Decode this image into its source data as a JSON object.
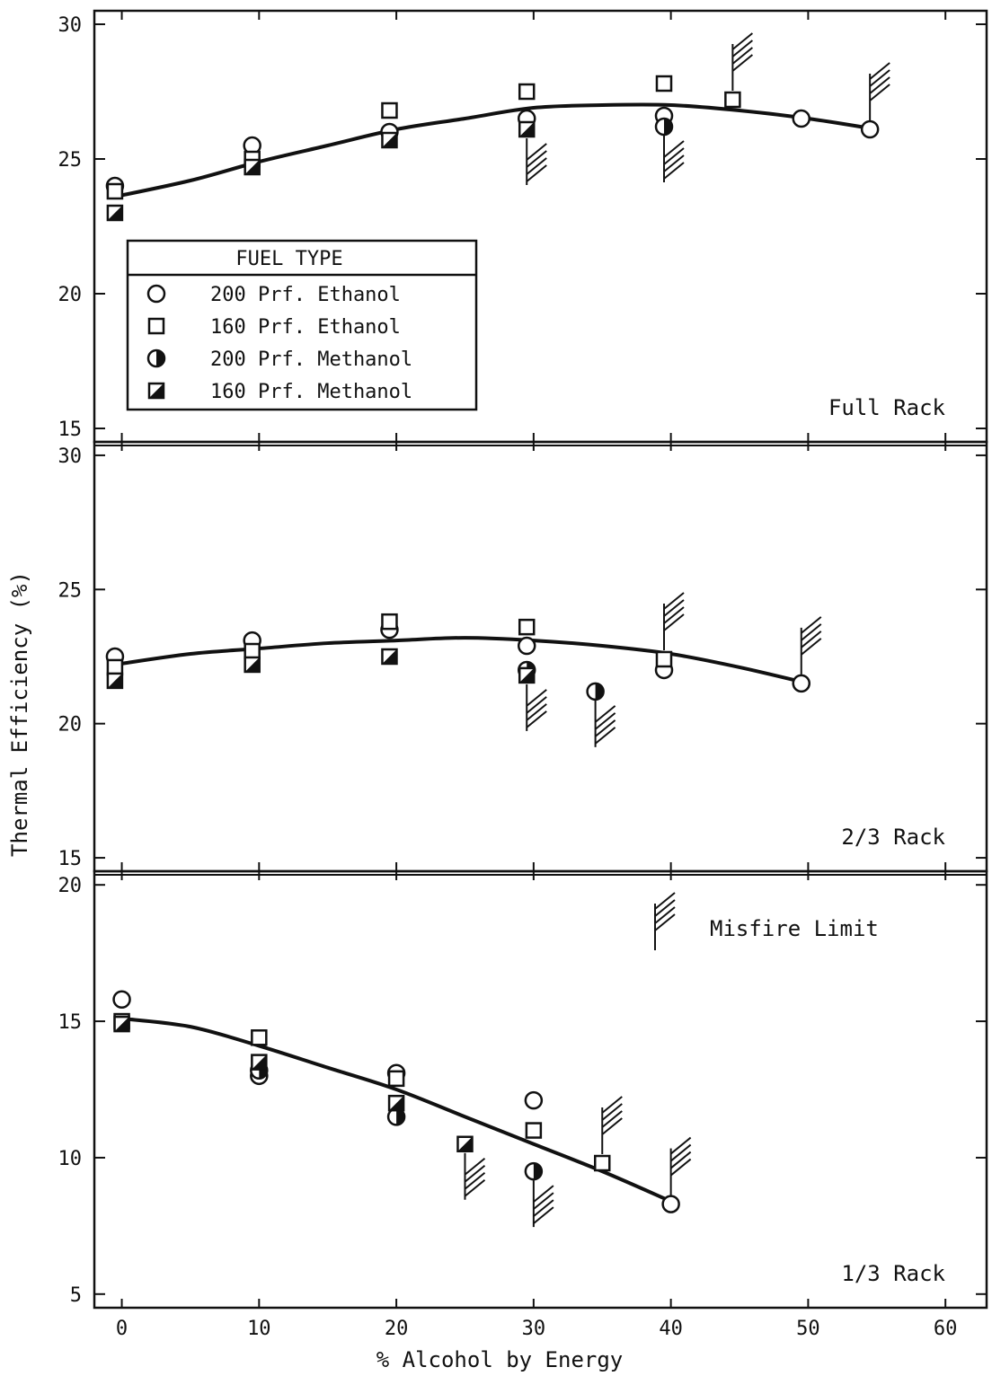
{
  "chart_data": {
    "type": "scatter",
    "xlabel": "% Alcohol by Energy",
    "ylabel": "Thermal Efficiency (%)",
    "x_ticks": [
      0,
      10,
      20,
      30,
      40,
      50,
      60
    ],
    "xlim": [
      -2,
      63
    ],
    "misfire_limit_label": "Misfire Limit",
    "legend": {
      "title": "FUEL TYPE",
      "entries": [
        {
          "marker": "open-circle",
          "label": "200 Prf. Ethanol"
        },
        {
          "marker": "open-square",
          "label": "160 Prf. Ethanol"
        },
        {
          "marker": "half-filled-circle",
          "label": "200 Prf. Methanol"
        },
        {
          "marker": "half-filled-square",
          "label": "160 Prf. Methanol"
        }
      ]
    },
    "panels": [
      {
        "label": "Full Rack",
        "ylim": [
          14.5,
          30.5
        ],
        "y_ticks": [
          15,
          20,
          25,
          30
        ],
        "fit_curve": [
          [
            -0.5,
            23.6
          ],
          [
            5,
            24.2
          ],
          [
            10,
            24.9
          ],
          [
            15,
            25.5
          ],
          [
            20,
            26.1
          ],
          [
            25,
            26.5
          ],
          [
            30,
            26.9
          ],
          [
            35,
            27.0
          ],
          [
            40,
            27.0
          ],
          [
            45,
            26.8
          ],
          [
            50,
            26.5
          ],
          [
            55,
            26.1
          ]
        ],
        "series": [
          {
            "name": "200 Prf. Ethanol",
            "marker": "open-circle",
            "points": [
              [
                -0.5,
                24.0
              ],
              [
                9.5,
                25.5
              ],
              [
                19.5,
                26.0
              ],
              [
                29.5,
                26.5
              ],
              [
                39.5,
                26.6
              ],
              [
                49.5,
                26.5
              ],
              [
                54.5,
                26.1
              ]
            ]
          },
          {
            "name": "160 Prf. Ethanol",
            "marker": "open-square",
            "points": [
              [
                -0.5,
                23.8
              ],
              [
                9.5,
                25.0
              ],
              [
                19.5,
                26.8
              ],
              [
                29.5,
                27.5
              ],
              [
                39.5,
                27.8
              ],
              [
                44.5,
                27.2
              ]
            ]
          },
          {
            "name": "200 Prf. Methanol",
            "marker": "half-filled-circle",
            "points": [
              [
                39.5,
                26.2
              ]
            ]
          },
          {
            "name": "160 Prf. Methanol",
            "marker": "half-filled-square",
            "points": [
              [
                -0.5,
                23.0
              ],
              [
                9.5,
                24.7
              ],
              [
                19.5,
                25.7
              ],
              [
                29.5,
                26.1
              ]
            ]
          }
        ],
        "misfire_limits": [
          {
            "x": 29.5,
            "y": 26.1,
            "dir": "down"
          },
          {
            "x": 39.5,
            "y": 26.2,
            "dir": "down"
          },
          {
            "x": 44.5,
            "y": 27.2,
            "dir": "up"
          },
          {
            "x": 54.5,
            "y": 26.1,
            "dir": "up"
          }
        ]
      },
      {
        "label": "2/3 Rack",
        "ylim": [
          14.5,
          30.5
        ],
        "y_ticks": [
          15,
          20,
          25,
          30
        ],
        "fit_curve": [
          [
            -0.5,
            22.2
          ],
          [
            5,
            22.6
          ],
          [
            10,
            22.8
          ],
          [
            15,
            23.0
          ],
          [
            20,
            23.1
          ],
          [
            25,
            23.2
          ],
          [
            30,
            23.1
          ],
          [
            35,
            22.9
          ],
          [
            40,
            22.6
          ],
          [
            45,
            22.1
          ],
          [
            50,
            21.5
          ]
        ],
        "series": [
          {
            "name": "200 Prf. Ethanol",
            "marker": "open-circle",
            "points": [
              [
                -0.5,
                22.5
              ],
              [
                9.5,
                23.1
              ],
              [
                19.5,
                23.5
              ],
              [
                29.5,
                22.9
              ],
              [
                39.5,
                22.0
              ],
              [
                49.5,
                21.5
              ]
            ]
          },
          {
            "name": "160 Prf. Ethanol",
            "marker": "open-square",
            "points": [
              [
                -0.5,
                22.1
              ],
              [
                9.5,
                22.7
              ],
              [
                19.5,
                23.8
              ],
              [
                29.5,
                23.6
              ],
              [
                39.5,
                22.4
              ]
            ]
          },
          {
            "name": "200 Prf. Methanol",
            "marker": "half-filled-circle",
            "points": [
              [
                29.5,
                22.0
              ],
              [
                34.5,
                21.2
              ]
            ]
          },
          {
            "name": "160 Prf. Methanol",
            "marker": "half-filled-square",
            "points": [
              [
                -0.5,
                21.6
              ],
              [
                9.5,
                22.2
              ],
              [
                19.5,
                22.5
              ],
              [
                29.5,
                21.8
              ]
            ]
          }
        ],
        "misfire_limits": [
          {
            "x": 29.5,
            "y": 21.8,
            "dir": "down"
          },
          {
            "x": 34.5,
            "y": 21.2,
            "dir": "down"
          },
          {
            "x": 39.5,
            "y": 22.4,
            "dir": "up"
          },
          {
            "x": 49.5,
            "y": 21.5,
            "dir": "up"
          }
        ]
      },
      {
        "label": "1/3 Rack",
        "ylim": [
          4.5,
          20.5
        ],
        "y_ticks": [
          5,
          10,
          15,
          20
        ],
        "fit_curve": [
          [
            0,
            15.1
          ],
          [
            5,
            14.8
          ],
          [
            10,
            14.1
          ],
          [
            15,
            13.3
          ],
          [
            20,
            12.5
          ],
          [
            25,
            11.5
          ],
          [
            30,
            10.5
          ],
          [
            35,
            9.5
          ],
          [
            40,
            8.4
          ]
        ],
        "series": [
          {
            "name": "200 Prf. Ethanol",
            "marker": "open-circle",
            "points": [
              [
                0,
                15.8
              ],
              [
                10,
                13.0
              ],
              [
                20,
                13.1
              ],
              [
                30,
                12.1
              ],
              [
                40,
                8.3
              ]
            ]
          },
          {
            "name": "160 Prf. Ethanol",
            "marker": "open-square",
            "points": [
              [
                0,
                15.0
              ],
              [
                10,
                14.4
              ],
              [
                20,
                12.9
              ],
              [
                30,
                11.0
              ],
              [
                35,
                9.8
              ]
            ]
          },
          {
            "name": "200 Prf. Methanol",
            "marker": "half-filled-circle",
            "points": [
              [
                10,
                13.2
              ],
              [
                20,
                11.5
              ],
              [
                30,
                9.5
              ]
            ]
          },
          {
            "name": "160 Prf. Methanol",
            "marker": "half-filled-square",
            "points": [
              [
                0,
                14.9
              ],
              [
                10,
                13.5
              ],
              [
                20,
                12.0
              ],
              [
                25,
                10.5
              ]
            ]
          }
        ],
        "misfire_limits": [
          {
            "x": 25,
            "y": 10.5,
            "dir": "down"
          },
          {
            "x": 30,
            "y": 9.5,
            "dir": "down"
          },
          {
            "x": 35,
            "y": 9.8,
            "dir": "up"
          },
          {
            "x": 40,
            "y": 8.3,
            "dir": "up"
          }
        ]
      }
    ]
  }
}
